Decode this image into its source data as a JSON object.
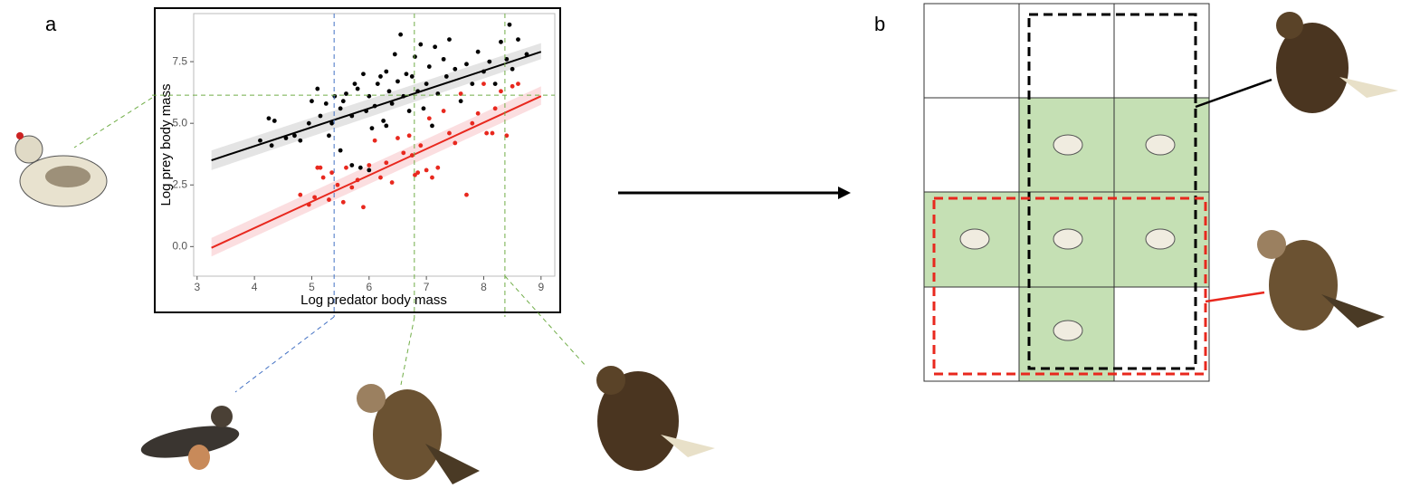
{
  "panels": [
    "a",
    "b"
  ],
  "chart_data": {
    "type": "scatter",
    "x_label": "Log predator body mass",
    "y_label": "Log prey body mass",
    "xlim": [
      2.94,
      9.24
    ],
    "ylim": [
      -1.2,
      9.45
    ],
    "xticks": [
      3,
      4,
      5,
      6,
      7,
      8,
      9
    ],
    "yticks": [
      {
        "value": 0,
        "label": "0.0"
      },
      {
        "value": 2.5,
        "label": "2.5"
      },
      {
        "value": 5,
        "label": "5.0"
      },
      {
        "value": 7.5,
        "label": "7.5"
      }
    ],
    "grid": false,
    "series": [
      {
        "color": "#000000",
        "x": [
          4.1,
          4.25,
          4.35,
          4.3,
          4.55,
          4.7,
          4.8,
          4.95,
          5.0,
          5.1,
          5.15,
          5.25,
          5.3,
          5.35,
          5.4,
          5.5,
          5.55,
          5.6,
          5.7,
          5.75,
          5.8,
          5.9,
          5.95,
          6.0,
          6.05,
          6.1,
          6.15,
          6.2,
          6.25,
          6.3,
          6.35,
          6.4,
          6.45,
          6.5,
          6.55,
          6.6,
          6.65,
          6.7,
          6.75,
          6.8,
          6.85,
          6.9,
          6.95,
          7.0,
          7.05,
          7.1,
          7.15,
          7.2,
          7.3,
          7.35,
          7.4,
          7.5,
          7.6,
          7.7,
          7.8,
          7.9,
          8.0,
          8.1,
          8.2,
          8.3,
          8.4,
          8.45,
          8.5,
          8.6,
          8.75,
          5.7,
          5.85,
          6.0,
          5.5,
          6.3
        ],
        "y": [
          4.3,
          5.2,
          5.1,
          4.1,
          4.4,
          4.5,
          4.3,
          5.0,
          5.9,
          6.4,
          5.3,
          5.8,
          4.5,
          5.0,
          6.1,
          5.6,
          5.9,
          6.2,
          5.3,
          6.6,
          6.4,
          7.0,
          5.5,
          6.1,
          4.8,
          5.7,
          6.6,
          6.9,
          5.1,
          7.1,
          6.3,
          5.8,
          7.8,
          6.7,
          8.6,
          6.1,
          7.0,
          5.5,
          6.9,
          7.7,
          6.3,
          8.2,
          5.6,
          6.6,
          7.3,
          4.9,
          8.1,
          6.2,
          7.6,
          6.9,
          8.4,
          7.2,
          5.9,
          7.4,
          6.6,
          7.9,
          7.1,
          7.5,
          6.6,
          8.3,
          7.6,
          9.0,
          7.2,
          8.4,
          7.8,
          3.3,
          3.2,
          3.1,
          3.9,
          4.9
        ]
      },
      {
        "color": "#e8281e",
        "x": [
          4.8,
          4.95,
          5.05,
          5.1,
          5.2,
          5.3,
          5.35,
          5.45,
          5.55,
          5.6,
          5.7,
          5.8,
          5.9,
          6.0,
          6.1,
          6.2,
          6.3,
          6.4,
          6.5,
          6.6,
          6.7,
          6.75,
          6.8,
          6.9,
          7.0,
          7.1,
          7.2,
          7.3,
          7.4,
          7.5,
          7.6,
          7.7,
          7.8,
          7.9,
          8.0,
          8.05,
          8.15,
          8.2,
          8.3,
          8.4,
          8.5,
          8.6,
          5.15,
          6.85,
          7.05
        ],
        "y": [
          2.1,
          1.7,
          2.0,
          3.2,
          2.8,
          1.9,
          3.0,
          2.5,
          1.8,
          3.2,
          2.4,
          2.7,
          1.6,
          3.3,
          4.3,
          2.8,
          3.4,
          2.6,
          4.4,
          3.8,
          4.5,
          3.7,
          2.9,
          4.1,
          3.1,
          2.8,
          3.2,
          5.5,
          4.6,
          4.2,
          6.2,
          2.1,
          5.0,
          5.4,
          6.6,
          4.6,
          4.6,
          5.6,
          6.3,
          4.5,
          6.5,
          6.6,
          3.2,
          3.0,
          5.2
        ]
      }
    ],
    "fits": [
      {
        "color": "#000000",
        "band_color": "#d9d9d9",
        "x": [
          3.25,
          9
        ],
        "y": [
          3.5,
          7.9
        ],
        "lower": [
          3.1,
          7.6
        ],
        "upper": [
          3.9,
          8.25
        ]
      },
      {
        "color": "#e8281e",
        "band_color": "#f9d0d3",
        "x": [
          3.25,
          9
        ],
        "y": [
          -0.05,
          6.1
        ],
        "lower": [
          -0.4,
          5.75
        ],
        "upper": [
          0.35,
          6.5
        ]
      }
    ],
    "vlines": [
      {
        "value": 5.39,
        "color": "#4472c4"
      },
      {
        "value": 6.79,
        "color": "#70ad47"
      },
      {
        "value": 8.37,
        "color": "#70ad47"
      }
    ],
    "hlines": [
      {
        "value": 6.14,
        "color": "#70ad47"
      }
    ]
  }
}
